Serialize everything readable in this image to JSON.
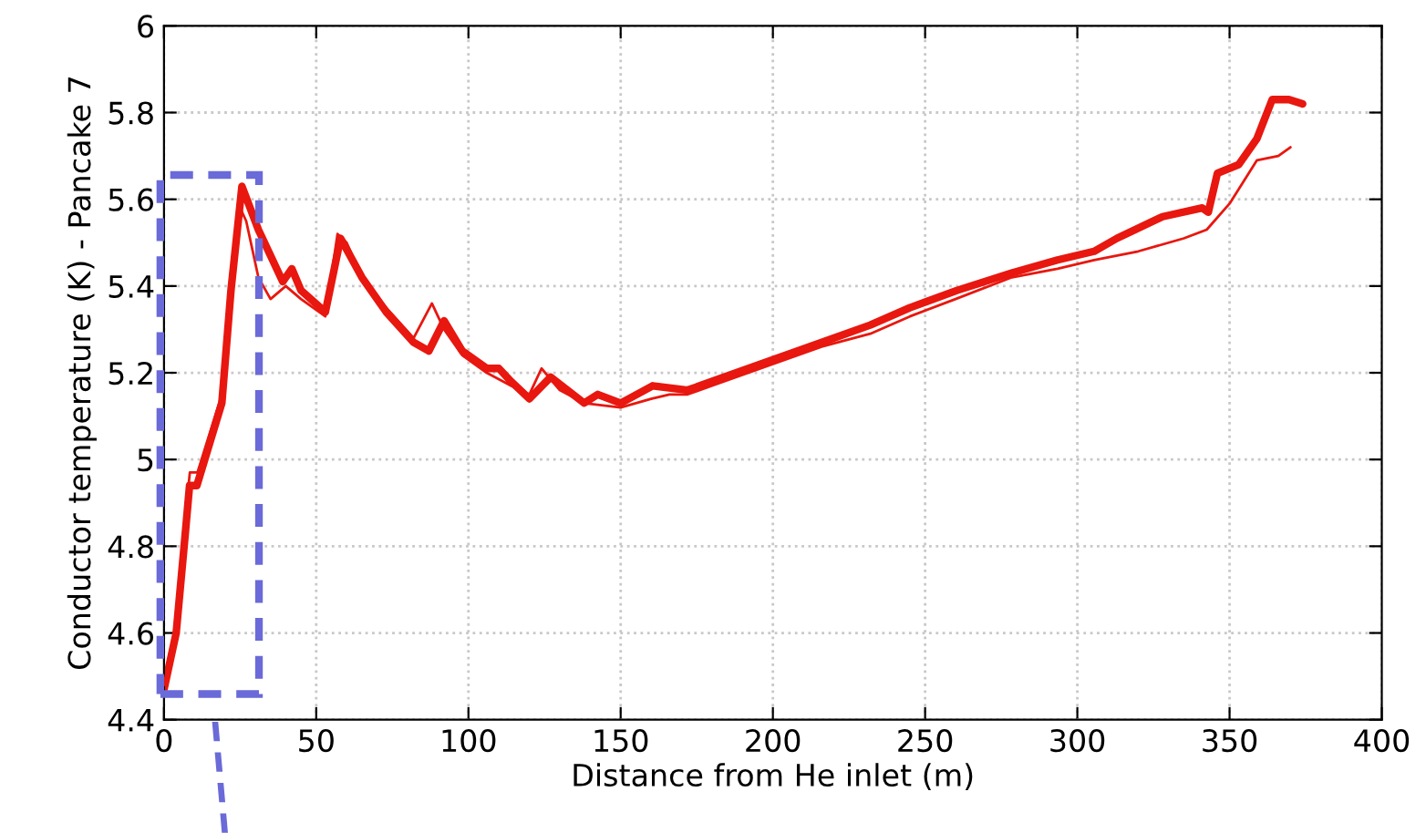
{
  "chart_data": {
    "type": "line",
    "xlabel": "Distance from He inlet (m)",
    "ylabel": "Conductor temperature (K) - Pancake 7",
    "xlim": [
      0,
      400
    ],
    "xticks": [
      0,
      50,
      100,
      150,
      200,
      250,
      300,
      350,
      400
    ],
    "ylim": [
      4.4,
      6
    ],
    "yticks": [
      4.4,
      4.6,
      4.8,
      5,
      5.2,
      5.4,
      5.6,
      5.8,
      6
    ],
    "grid": true,
    "series": [
      {
        "color": "#e8170f",
        "x": [
          0,
          4,
          7,
          8.4,
          10.8,
          19,
          22,
          25.6,
          31,
          39,
          42,
          45,
          53,
          58,
          65,
          73,
          82,
          87,
          92,
          98,
          106,
          110,
          114,
          120,
          127,
          138,
          142.5,
          150,
          160.5,
          172,
          180,
          196,
          216,
          232,
          245,
          260.5,
          278.5,
          293.5,
          305.5,
          313,
          328,
          341,
          343,
          346,
          353,
          359,
          364,
          369.5,
          374
        ],
        "values": [
          4.47,
          4.6,
          4.83,
          4.94,
          4.94,
          5.13,
          5.39,
          5.63,
          5.53,
          5.41,
          5.44,
          5.39,
          5.34,
          5.51,
          5.42,
          5.34,
          5.27,
          5.25,
          5.32,
          5.25,
          5.21,
          5.21,
          5.18,
          5.14,
          5.19,
          5.13,
          5.15,
          5.13,
          5.17,
          5.16,
          5.18,
          5.22,
          5.27,
          5.31,
          5.35,
          5.39,
          5.43,
          5.46,
          5.48,
          5.51,
          5.56,
          5.58,
          5.57,
          5.66,
          5.68,
          5.74,
          5.83,
          5.83,
          5.82
        ]
      },
      {
        "color": "#e8170f",
        "x": [
          0,
          4,
          7,
          8.5,
          11,
          19,
          22,
          25,
          27,
          31,
          35,
          40,
          45,
          53,
          57,
          60,
          65,
          73,
          82,
          88,
          92,
          98,
          106,
          114,
          120,
          124,
          130,
          138,
          150,
          160,
          166,
          172,
          180,
          196,
          216,
          232,
          245,
          260,
          278.5,
          293.5,
          305.5,
          320,
          335,
          342.5,
          350,
          359,
          366,
          370
        ],
        "values": [
          4.48,
          4.62,
          4.87,
          4.97,
          4.97,
          5.15,
          5.38,
          5.58,
          5.55,
          5.42,
          5.37,
          5.4,
          5.37,
          5.33,
          5.52,
          5.5,
          5.42,
          5.35,
          5.28,
          5.36,
          5.3,
          5.24,
          5.2,
          5.17,
          5.15,
          5.21,
          5.16,
          5.13,
          5.12,
          5.14,
          5.15,
          5.15,
          5.17,
          5.21,
          5.26,
          5.29,
          5.33,
          5.37,
          5.42,
          5.44,
          5.46,
          5.48,
          5.51,
          5.53,
          5.59,
          5.69,
          5.7,
          5.72
        ]
      }
    ]
  }
}
